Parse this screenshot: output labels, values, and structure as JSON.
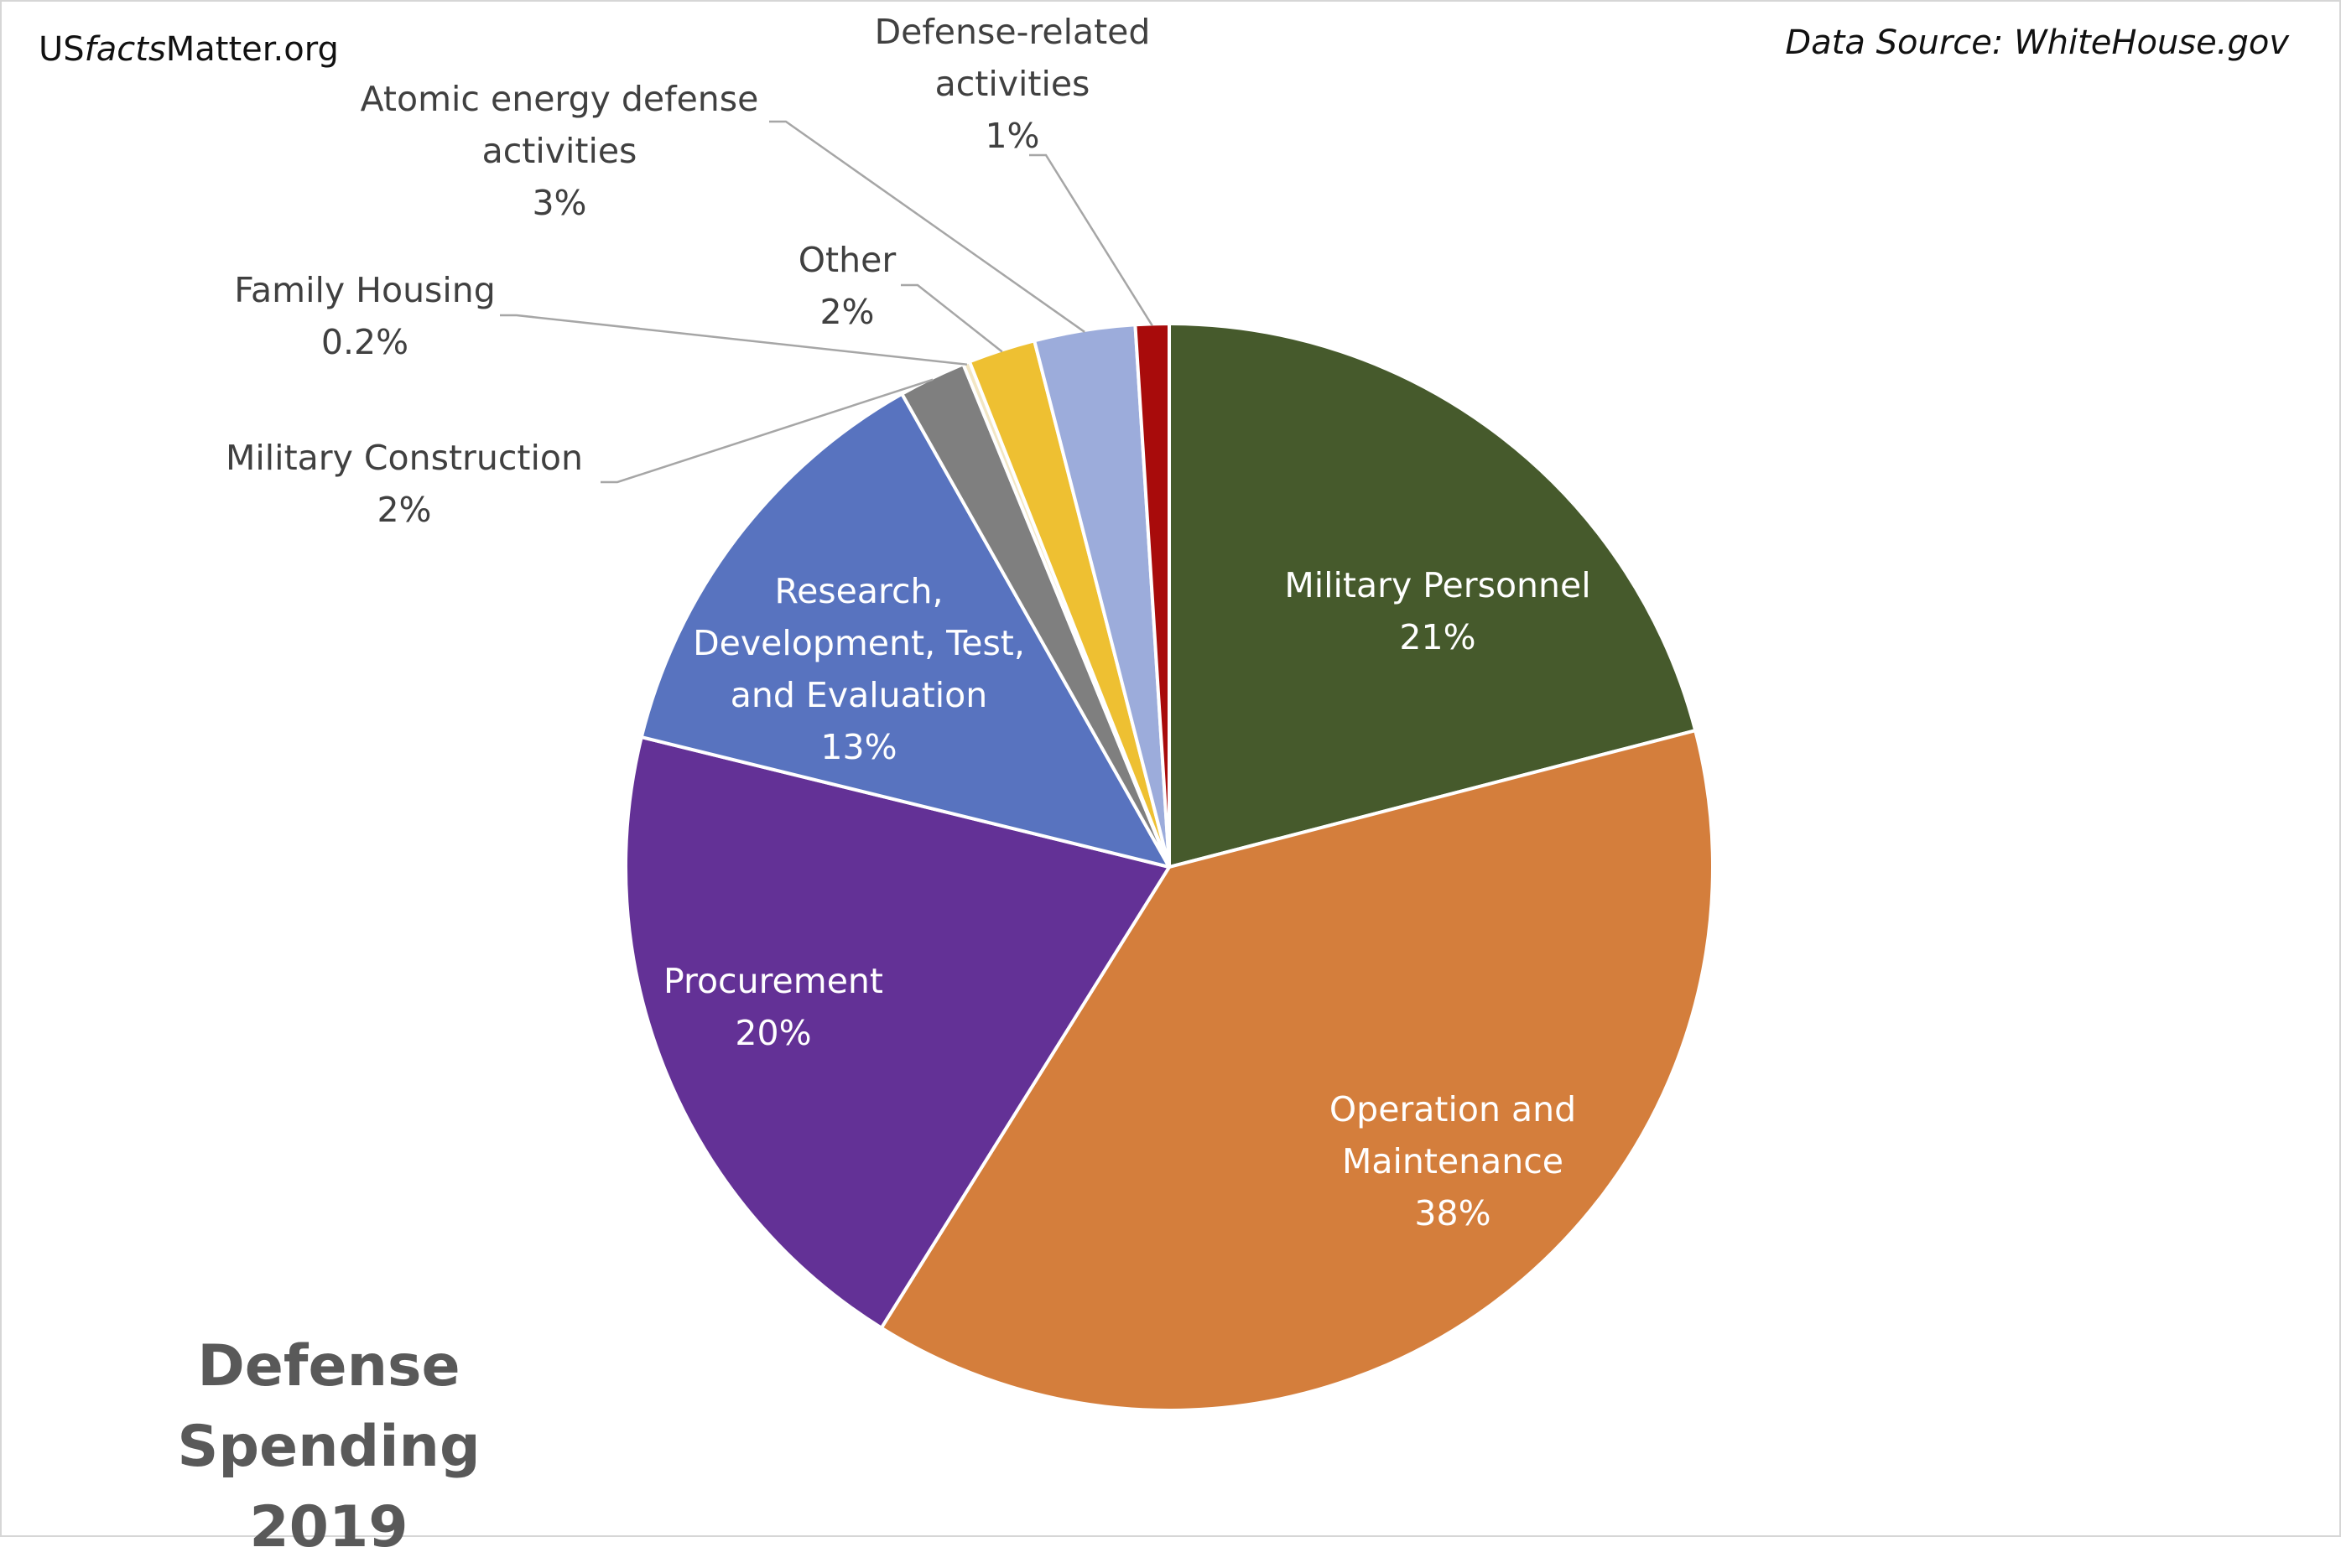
{
  "brand": {
    "prefix": "US",
    "italic": "facts",
    "suffix": "Matter.org"
  },
  "source": "Data Source: WhiteHouse.gov",
  "chart_data": {
    "type": "pie",
    "title_lines": [
      "Defense Spending",
      "2019"
    ],
    "slices": [
      {
        "name": "Military Personnel",
        "value": 21,
        "pct_label": "21%",
        "label_lines": [
          "Military Personnel",
          "21%"
        ],
        "color": "#465a2c",
        "label_color": "#ffffff"
      },
      {
        "name": "Operation and Maintenance",
        "value": 38,
        "pct_label": "38%",
        "label_lines": [
          "Operation and",
          "Maintenance",
          "38%"
        ],
        "color": "#d47e3c",
        "label_color": "#ffffff"
      },
      {
        "name": "Procurement",
        "value": 20,
        "pct_label": "20%",
        "label_lines": [
          "Procurement",
          "20%"
        ],
        "color": "#633196",
        "label_color": "#ffffff"
      },
      {
        "name": "Research, Development, Test, and Evaluation",
        "value": 13,
        "pct_label": "13%",
        "label_lines": [
          "Research,",
          "Development, Test,",
          "and Evaluation",
          "13%"
        ],
        "color": "#5873bf",
        "label_color": "#ffffff"
      },
      {
        "name": "Military Construction",
        "value": 2,
        "pct_label": "2%",
        "label_lines": [
          "Military Construction",
          "2%"
        ],
        "color": "#7f7f7f",
        "label_color": "#404040"
      },
      {
        "name": "Family Housing",
        "value": 0.2,
        "pct_label": "0.2%",
        "label_lines": [
          "Family Housing",
          "0.2%"
        ],
        "color": "#f2e6c4",
        "label_color": "#404040"
      },
      {
        "name": "Other",
        "value": 2,
        "pct_label": "2%",
        "label_lines": [
          "Other",
          "2%"
        ],
        "color": "#eec032",
        "label_color": "#404040"
      },
      {
        "name": "Atomic energy defense activities",
        "value": 3,
        "pct_label": "3%",
        "label_lines": [
          "Atomic energy defense",
          "activities",
          "3%"
        ],
        "color": "#9cacdb",
        "label_color": "#404040"
      },
      {
        "name": "Defense-related activities",
        "value": 1,
        "pct_label": "1%",
        "label_lines": [
          "Defense-related",
          "activities",
          "1%"
        ],
        "color": "#a80b0b",
        "label_color": "#404040"
      }
    ]
  }
}
